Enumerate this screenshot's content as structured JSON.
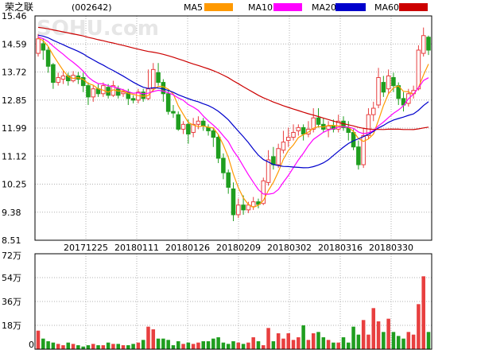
{
  "header": {
    "stock_name": "荣之联",
    "stock_code": "(002642)",
    "watermark": "SOHU.com"
  },
  "legend": [
    {
      "name": "MA5",
      "color": "#ff9900"
    },
    {
      "name": "MA10",
      "color": "#ff00ff"
    },
    {
      "name": "MA20",
      "color": "#0000cc"
    },
    {
      "name": "MA60",
      "color": "#cc0000"
    }
  ],
  "colors": {
    "up": "#e83f3f",
    "down": "#1f9e1f",
    "grid": "#b0b0b0"
  },
  "chart_data": {
    "type": "candlestick",
    "price_axis": {
      "ticks": [
        "15.46",
        "14.59",
        "13.72",
        "12.85",
        "11.99",
        "11.12",
        "10.25",
        "9.38",
        "8.51"
      ],
      "range": [
        8.51,
        15.46
      ]
    },
    "volume_axis": {
      "ticks": [
        "72万",
        "54万",
        "36万",
        "18万",
        "0"
      ],
      "range": [
        0,
        72
      ]
    },
    "date_labels": [
      "20171225",
      "20180111",
      "20180126",
      "20180209",
      "20180302",
      "20180316",
      "20180330"
    ],
    "candles": [
      [
        14.3,
        14.75,
        14.9,
        14.2
      ],
      [
        14.6,
        14.4,
        14.75,
        14.1
      ],
      [
        14.4,
        13.9,
        14.5,
        13.7
      ],
      [
        13.95,
        13.4,
        14.0,
        13.2
      ],
      [
        13.4,
        13.55,
        13.7,
        13.3
      ],
      [
        13.5,
        13.6,
        13.75,
        13.35
      ],
      [
        13.6,
        13.45,
        13.7,
        13.3
      ],
      [
        13.45,
        13.62,
        13.75,
        13.4
      ],
      [
        13.6,
        13.5,
        13.72,
        13.35
      ],
      [
        13.55,
        13.3,
        13.7,
        13.1
      ],
      [
        13.3,
        12.95,
        13.4,
        12.7
      ],
      [
        12.95,
        13.2,
        13.3,
        12.8
      ],
      [
        13.2,
        13.05,
        13.35,
        12.95
      ],
      [
        13.05,
        13.3,
        13.4,
        12.95
      ],
      [
        13.25,
        13.0,
        13.35,
        12.9
      ],
      [
        13.0,
        13.3,
        13.45,
        12.95
      ],
      [
        13.2,
        13.0,
        13.3,
        12.9
      ],
      [
        13.05,
        13.1,
        13.2,
        12.95
      ],
      [
        13.1,
        12.9,
        13.2,
        12.7
      ],
      [
        12.9,
        12.85,
        13.0,
        12.75
      ],
      [
        12.85,
        13.1,
        13.2,
        12.75
      ],
      [
        13.1,
        12.9,
        13.2,
        12.8
      ],
      [
        12.9,
        13.2,
        13.8,
        12.85
      ],
      [
        13.2,
        13.8,
        14.0,
        13.1
      ],
      [
        13.7,
        13.4,
        14.0,
        13.3
      ],
      [
        13.4,
        13.05,
        13.5,
        12.8
      ],
      [
        13.05,
        12.5,
        13.2,
        12.4
      ],
      [
        12.5,
        12.45,
        12.7,
        12.3
      ],
      [
        12.4,
        11.95,
        12.5,
        11.9
      ],
      [
        11.95,
        12.1,
        12.2,
        11.8
      ],
      [
        12.1,
        11.8,
        12.25,
        11.5
      ],
      [
        11.85,
        12.1,
        12.3,
        11.7
      ],
      [
        12.1,
        12.2,
        12.35,
        11.95
      ],
      [
        12.2,
        12.05,
        12.3,
        11.9
      ],
      [
        12.0,
        11.9,
        12.1,
        11.75
      ],
      [
        11.9,
        11.7,
        12.0,
        11.4
      ],
      [
        11.7,
        11.05,
        11.8,
        10.9
      ],
      [
        11.05,
        10.6,
        11.2,
        10.4
      ],
      [
        10.6,
        10.15,
        10.7,
        9.95
      ],
      [
        10.1,
        9.3,
        10.3,
        9.1
      ],
      [
        9.3,
        9.6,
        9.8,
        9.2
      ],
      [
        9.6,
        9.45,
        9.9,
        9.3
      ],
      [
        9.45,
        9.6,
        9.7,
        9.35
      ],
      [
        9.55,
        9.7,
        9.85,
        9.45
      ],
      [
        9.7,
        9.62,
        9.8,
        9.5
      ],
      [
        9.65,
        10.35,
        10.45,
        9.6
      ],
      [
        10.3,
        11.0,
        11.3,
        10.2
      ],
      [
        11.1,
        10.85,
        11.4,
        10.7
      ],
      [
        10.85,
        11.35,
        11.5,
        10.75
      ],
      [
        11.3,
        11.55,
        11.9,
        11.2
      ],
      [
        11.6,
        11.7,
        12.0,
        11.4
      ],
      [
        11.7,
        11.85,
        12.1,
        11.6
      ],
      [
        11.9,
        12.0,
        12.1,
        11.75
      ],
      [
        12.0,
        11.8,
        12.1,
        11.6
      ],
      [
        11.8,
        11.95,
        12.2,
        11.7
      ],
      [
        11.95,
        12.3,
        12.6,
        11.85
      ],
      [
        12.3,
        12.1,
        12.6,
        12.0
      ],
      [
        12.1,
        11.95,
        12.3,
        11.85
      ],
      [
        11.95,
        12.05,
        12.2,
        11.7
      ],
      [
        12.05,
        11.95,
        12.25,
        11.85
      ],
      [
        11.95,
        12.2,
        12.4,
        11.85
      ],
      [
        12.2,
        12.0,
        12.35,
        11.9
      ],
      [
        12.0,
        11.85,
        12.2,
        11.6
      ],
      [
        11.85,
        11.4,
        11.95,
        11.3
      ],
      [
        11.4,
        10.85,
        11.6,
        10.7
      ],
      [
        10.85,
        11.75,
        12.0,
        10.75
      ],
      [
        11.75,
        12.4,
        12.6,
        11.65
      ],
      [
        12.4,
        12.6,
        12.8,
        12.2
      ],
      [
        12.7,
        13.55,
        13.85,
        12.6
      ],
      [
        13.4,
        13.1,
        13.6,
        12.95
      ],
      [
        13.2,
        13.6,
        13.8,
        13.05
      ],
      [
        13.55,
        13.3,
        13.7,
        13.1
      ],
      [
        13.3,
        12.9,
        13.4,
        12.7
      ],
      [
        12.9,
        12.7,
        13.1,
        12.5
      ],
      [
        12.75,
        13.05,
        13.2,
        12.65
      ],
      [
        13.05,
        13.15,
        13.3,
        12.9
      ],
      [
        13.2,
        14.4,
        14.55,
        13.15
      ],
      [
        14.3,
        14.85,
        15.1,
        14.2
      ],
      [
        14.8,
        14.4,
        14.85,
        14.25
      ]
    ],
    "volumes": [
      14,
      8,
      6,
      5,
      4,
      3,
      5,
      4,
      3,
      2,
      3,
      4,
      3,
      3,
      5,
      4,
      4,
      3,
      3,
      4,
      5,
      7,
      17,
      15,
      8,
      8,
      7,
      3,
      6,
      4,
      5,
      4,
      5,
      6,
      6,
      8,
      9,
      5,
      4,
      6,
      5,
      4,
      5,
      9,
      6,
      3,
      16,
      6,
      12,
      8,
      12,
      7,
      9,
      18,
      7,
      12,
      13,
      9,
      7,
      5,
      5,
      9,
      5,
      17,
      11,
      22,
      11,
      31,
      21,
      13,
      23,
      13,
      10,
      8,
      13,
      11,
      34,
      55,
      13
    ]
  }
}
